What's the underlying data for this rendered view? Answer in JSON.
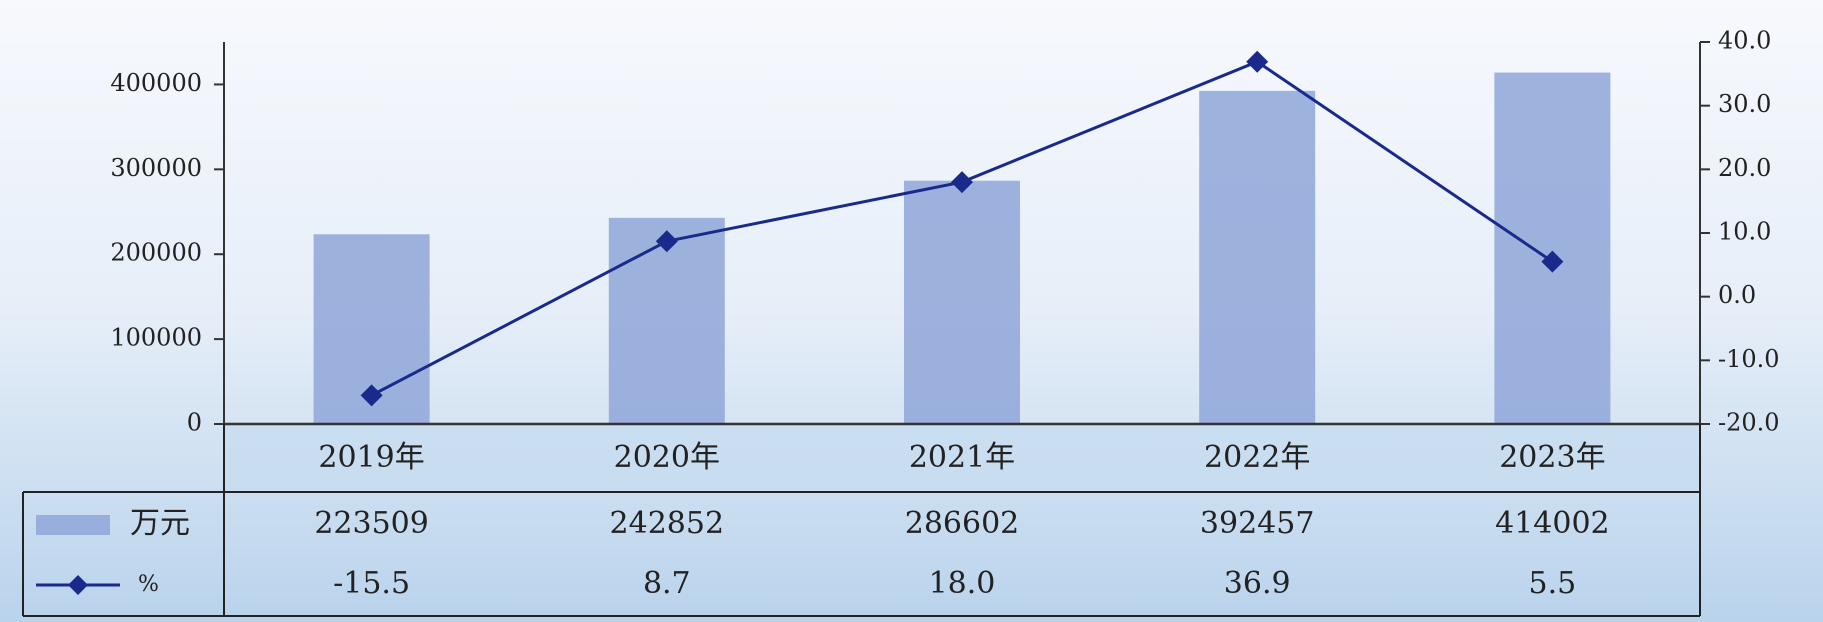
{
  "chart_data": {
    "type": "bar-line",
    "categories": [
      "2019年",
      "2020年",
      "2021年",
      "2022年",
      "2023年"
    ],
    "series": [
      {
        "name": "万元",
        "type": "bar",
        "color": "#8fa6d8",
        "values": [
          223509,
          242852,
          286602,
          392457,
          414002
        ]
      },
      {
        "name": "%",
        "type": "line",
        "axis": "y2",
        "color": "#1a2a8c",
        "values": [
          -15.5,
          8.7,
          18.0,
          36.9,
          5.5
        ],
        "value_labels": [
          "-15.5",
          "8.7",
          "18.0",
          "36.9",
          "5.5"
        ]
      }
    ],
    "ylim": [
      0,
      450000
    ],
    "yticks": [
      0,
      100000,
      200000,
      300000,
      400000
    ],
    "y2lim": [
      -20,
      40
    ],
    "y2ticks": [
      {
        "value": -20,
        "label": "-20.0"
      },
      {
        "value": -10,
        "label": "-10.0"
      },
      {
        "value": 0,
        "label": "0.0"
      },
      {
        "value": 10,
        "label": "10.0"
      },
      {
        "value": 20,
        "label": "20.0"
      },
      {
        "value": 30,
        "label": "30.0"
      },
      {
        "value": 40,
        "label": "40.0"
      }
    ]
  }
}
